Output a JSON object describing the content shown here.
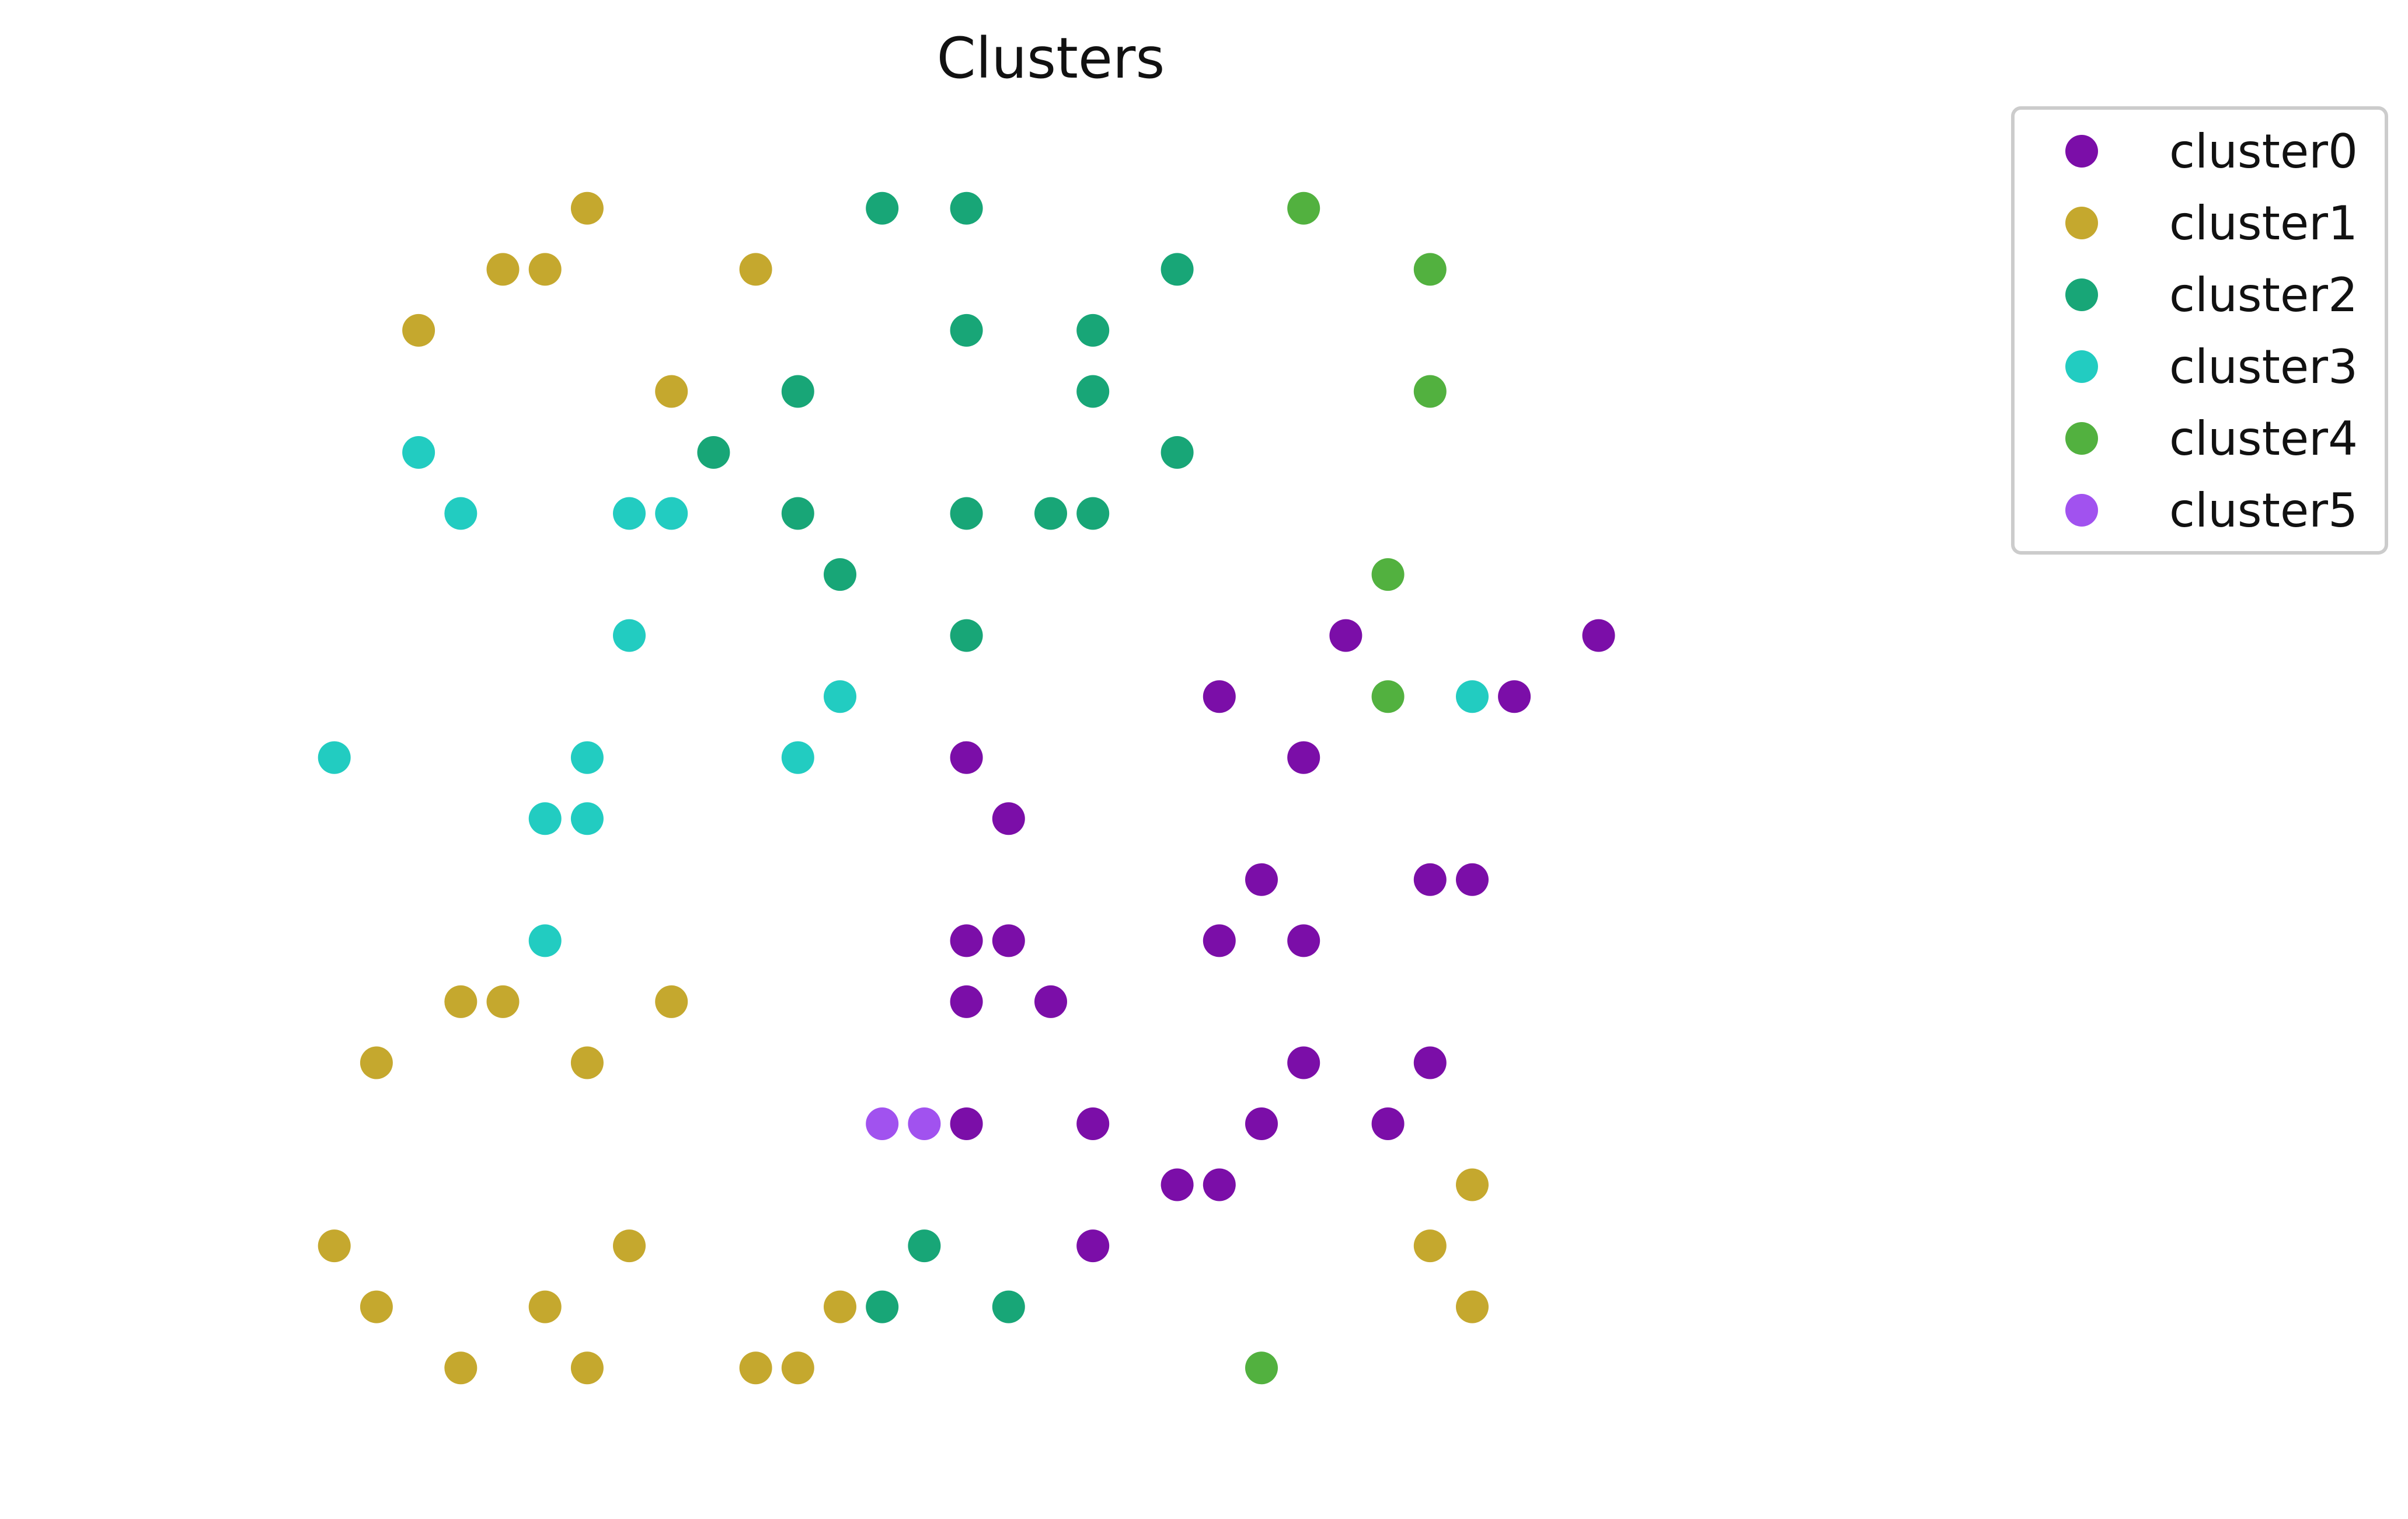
{
  "chart_data": {
    "type": "scatter",
    "title": "Clusters",
    "xlabel": "",
    "ylabel": "",
    "xlim": [
      0.5,
      41.5
    ],
    "ylim": [
      -20.5,
      1.5
    ],
    "grid": false,
    "axes_visible": false,
    "legend_position": "top-right-outside",
    "series": [
      {
        "name": "cluster0",
        "color": "#7b0ea8",
        "points": [
          [
            28,
            -7
          ],
          [
            34,
            -7
          ],
          [
            25,
            -8
          ],
          [
            32,
            -8
          ],
          [
            19,
            -9
          ],
          [
            27,
            -9
          ],
          [
            20,
            -10
          ],
          [
            26,
            -11
          ],
          [
            30,
            -11
          ],
          [
            31,
            -11
          ],
          [
            19,
            -12
          ],
          [
            20,
            -12
          ],
          [
            25,
            -12
          ],
          [
            27,
            -12
          ],
          [
            19,
            -13
          ],
          [
            21,
            -13
          ],
          [
            27,
            -14
          ],
          [
            30,
            -14
          ],
          [
            19,
            -15
          ],
          [
            22,
            -15
          ],
          [
            26,
            -15
          ],
          [
            29,
            -15
          ],
          [
            24,
            -16
          ],
          [
            25,
            -16
          ],
          [
            22,
            -17
          ]
        ]
      },
      {
        "name": "cluster1",
        "color": "#c5a82e",
        "points": [
          [
            10,
            0
          ],
          [
            8,
            -1
          ],
          [
            9,
            -1
          ],
          [
            14,
            -1
          ],
          [
            6,
            -2
          ],
          [
            12,
            -3
          ],
          [
            7,
            -13
          ],
          [
            8,
            -13
          ],
          [
            12,
            -13
          ],
          [
            5,
            -14
          ],
          [
            10,
            -14
          ],
          [
            31,
            -16
          ],
          [
            4,
            -17
          ],
          [
            11,
            -17
          ],
          [
            30,
            -17
          ],
          [
            5,
            -18
          ],
          [
            9,
            -18
          ],
          [
            16,
            -18
          ],
          [
            31,
            -18
          ],
          [
            7,
            -19
          ],
          [
            10,
            -19
          ],
          [
            14,
            -19
          ],
          [
            15,
            -19
          ]
        ]
      },
      {
        "name": "cluster2",
        "color": "#18a677",
        "points": [
          [
            17,
            0
          ],
          [
            19,
            0
          ],
          [
            24,
            -1
          ],
          [
            19,
            -2
          ],
          [
            22,
            -2
          ],
          [
            15,
            -3
          ],
          [
            22,
            -3
          ],
          [
            13,
            -4
          ],
          [
            24,
            -4
          ],
          [
            15,
            -5
          ],
          [
            19,
            -5
          ],
          [
            21,
            -5
          ],
          [
            22,
            -5
          ],
          [
            16,
            -6
          ],
          [
            19,
            -7
          ],
          [
            18,
            -17
          ],
          [
            17,
            -18
          ],
          [
            20,
            -18
          ]
        ]
      },
      {
        "name": "cluster3",
        "color": "#22ccc1",
        "points": [
          [
            6,
            -4
          ],
          [
            7,
            -5
          ],
          [
            11,
            -5
          ],
          [
            12,
            -5
          ],
          [
            11,
            -7
          ],
          [
            16,
            -8
          ],
          [
            31,
            -8
          ],
          [
            4,
            -9
          ],
          [
            10,
            -9
          ],
          [
            15,
            -9
          ],
          [
            9,
            -10
          ],
          [
            10,
            -10
          ],
          [
            9,
            -12
          ]
        ]
      },
      {
        "name": "cluster4",
        "color": "#52b13f",
        "points": [
          [
            27,
            0
          ],
          [
            30,
            -1
          ],
          [
            30,
            -3
          ],
          [
            29,
            -6
          ],
          [
            29,
            -8
          ],
          [
            26,
            -19
          ]
        ]
      },
      {
        "name": "cluster5",
        "color": "#a152ef",
        "points": [
          [
            17,
            -15
          ],
          [
            18,
            -15
          ]
        ]
      }
    ]
  }
}
